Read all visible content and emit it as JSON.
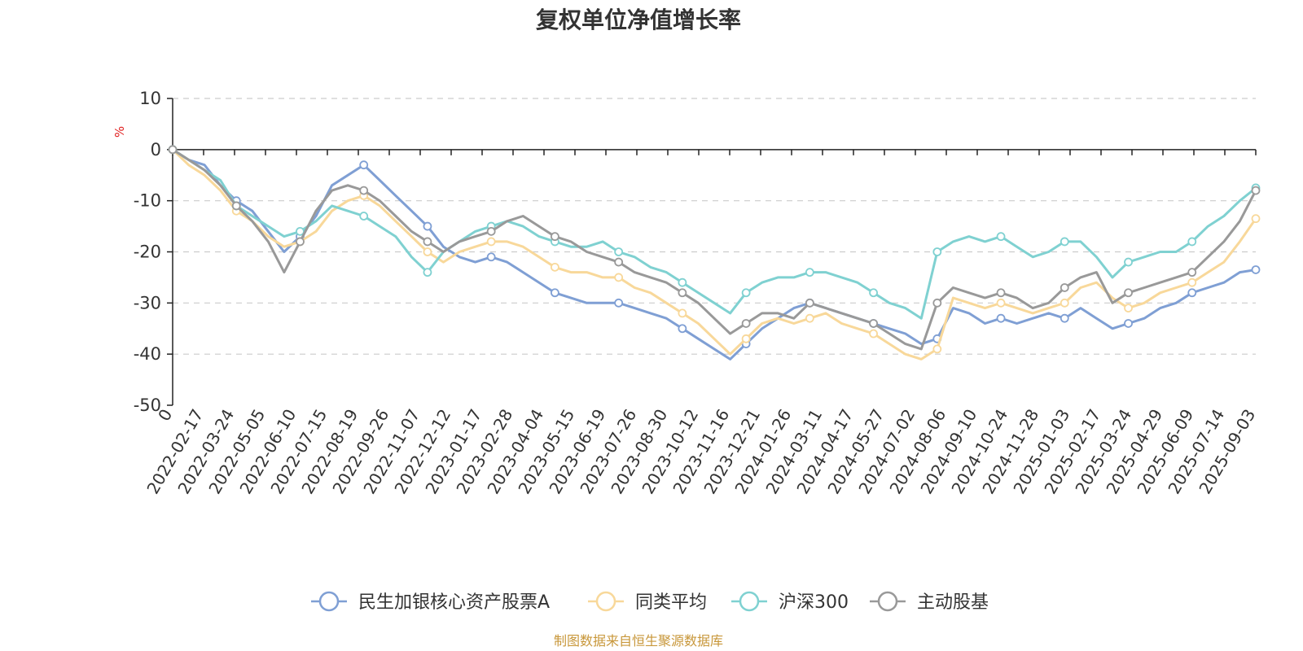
{
  "chart_data": {
    "type": "line",
    "title": "复权单位净值增长率",
    "ylabel": "%",
    "ylim": [
      -50,
      10
    ],
    "yticks": [
      "10",
      "0",
      "-10",
      "-20",
      "-30",
      "-40",
      "-50"
    ],
    "xlabels": [
      "0",
      "2022-02-17",
      "2022-03-24",
      "2022-05-05",
      "2022-06-10",
      "2022-07-15",
      "2022-08-19",
      "2022-09-26",
      "2022-11-07",
      "2022-12-12",
      "2023-01-17",
      "2023-02-28",
      "2023-04-04",
      "2023-05-15",
      "2023-06-19",
      "2023-07-26",
      "2023-08-30",
      "2023-10-12",
      "2023-11-16",
      "2023-12-21",
      "2024-01-26",
      "2024-03-11",
      "2024-04-17",
      "2024-05-27",
      "2024-07-02",
      "2024-08-06",
      "2024-09-10",
      "2024-10-24",
      "2024-11-28",
      "2025-01-03",
      "2025-02-17",
      "2025-03-24",
      "2025-04-29",
      "2025-06-09",
      "2025-07-14",
      "2025-09-03"
    ],
    "grid": true,
    "legend_position": "bottom",
    "series": [
      {
        "name": "民生加银核心资产股票A",
        "color": "#7f9fd4",
        "values": [
          0,
          -2,
          -3,
          -7,
          -10,
          -12,
          -16,
          -20,
          -17,
          -13,
          -7,
          -5,
          -3,
          -6,
          -9,
          -12,
          -15,
          -19,
          -21,
          -22,
          -21,
          -22,
          -24,
          -26,
          -28,
          -29,
          -30,
          -30,
          -30,
          -31,
          -32,
          -33,
          -35,
          -37,
          -39,
          -41,
          -38,
          -35,
          -33,
          -31,
          -30,
          -31,
          -32,
          -33,
          -34,
          -35,
          -36,
          -38,
          -37,
          -31,
          -32,
          -34,
          -33,
          -34,
          -33,
          -32,
          -33,
          -31,
          -33,
          -35,
          -34,
          -33,
          -31,
          -30,
          -28,
          -27,
          -26,
          -24,
          -23.5
        ]
      },
      {
        "name": "同类平均",
        "color": "#f8d89a",
        "values": [
          0,
          -3,
          -5,
          -8,
          -12,
          -14,
          -17,
          -19,
          -18,
          -16,
          -12,
          -10,
          -9,
          -11,
          -14,
          -17,
          -20,
          -22,
          -20,
          -19,
          -18,
          -18,
          -19,
          -21,
          -23,
          -24,
          -24,
          -25,
          -25,
          -27,
          -28,
          -30,
          -32,
          -34,
          -37,
          -40,
          -37,
          -34,
          -33,
          -34,
          -33,
          -32,
          -34,
          -35,
          -36,
          -38,
          -40,
          -41,
          -39,
          -29,
          -30,
          -31,
          -30,
          -31,
          -32,
          -31,
          -30,
          -27,
          -26,
          -29,
          -31,
          -30,
          -28,
          -27,
          -26,
          -24,
          -22,
          -18,
          -13.5
        ]
      },
      {
        "name": "沪深300",
        "color": "#7fd1d1",
        "values": [
          0,
          -2,
          -4,
          -6,
          -11,
          -13,
          -15,
          -17,
          -16,
          -14,
          -11,
          -12,
          -13,
          -15,
          -17,
          -21,
          -24,
          -20,
          -18,
          -16,
          -15,
          -14,
          -15,
          -17,
          -18,
          -19,
          -19,
          -18,
          -20,
          -21,
          -23,
          -24,
          -26,
          -28,
          -30,
          -32,
          -28,
          -26,
          -25,
          -25,
          -24,
          -24,
          -25,
          -26,
          -28,
          -30,
          -31,
          -33,
          -20,
          -18,
          -17,
          -18,
          -17,
          -19,
          -21,
          -20,
          -18,
          -18,
          -21,
          -25,
          -22,
          -21,
          -20,
          -20,
          -18,
          -15,
          -13,
          -10,
          -7.5
        ]
      },
      {
        "name": "主动股基",
        "color": "#999999",
        "values": [
          0,
          -2,
          -4,
          -7,
          -11,
          -14,
          -18,
          -24,
          -18,
          -12,
          -8,
          -7,
          -8,
          -10,
          -13,
          -16,
          -18,
          -20,
          -18,
          -17,
          -16,
          -14,
          -13,
          -15,
          -17,
          -18,
          -20,
          -21,
          -22,
          -24,
          -25,
          -26,
          -28,
          -30,
          -33,
          -36,
          -34,
          -32,
          -32,
          -33,
          -30,
          -31,
          -32,
          -33,
          -34,
          -36,
          -38,
          -39,
          -30,
          -27,
          -28,
          -29,
          -28,
          -29,
          -31,
          -30,
          -27,
          -25,
          -24,
          -30,
          -28,
          -27,
          -26,
          -25,
          -24,
          -21,
          -18,
          -14,
          -8
        ]
      }
    ]
  },
  "source_note": "制图数据来自恒生聚源数据库"
}
